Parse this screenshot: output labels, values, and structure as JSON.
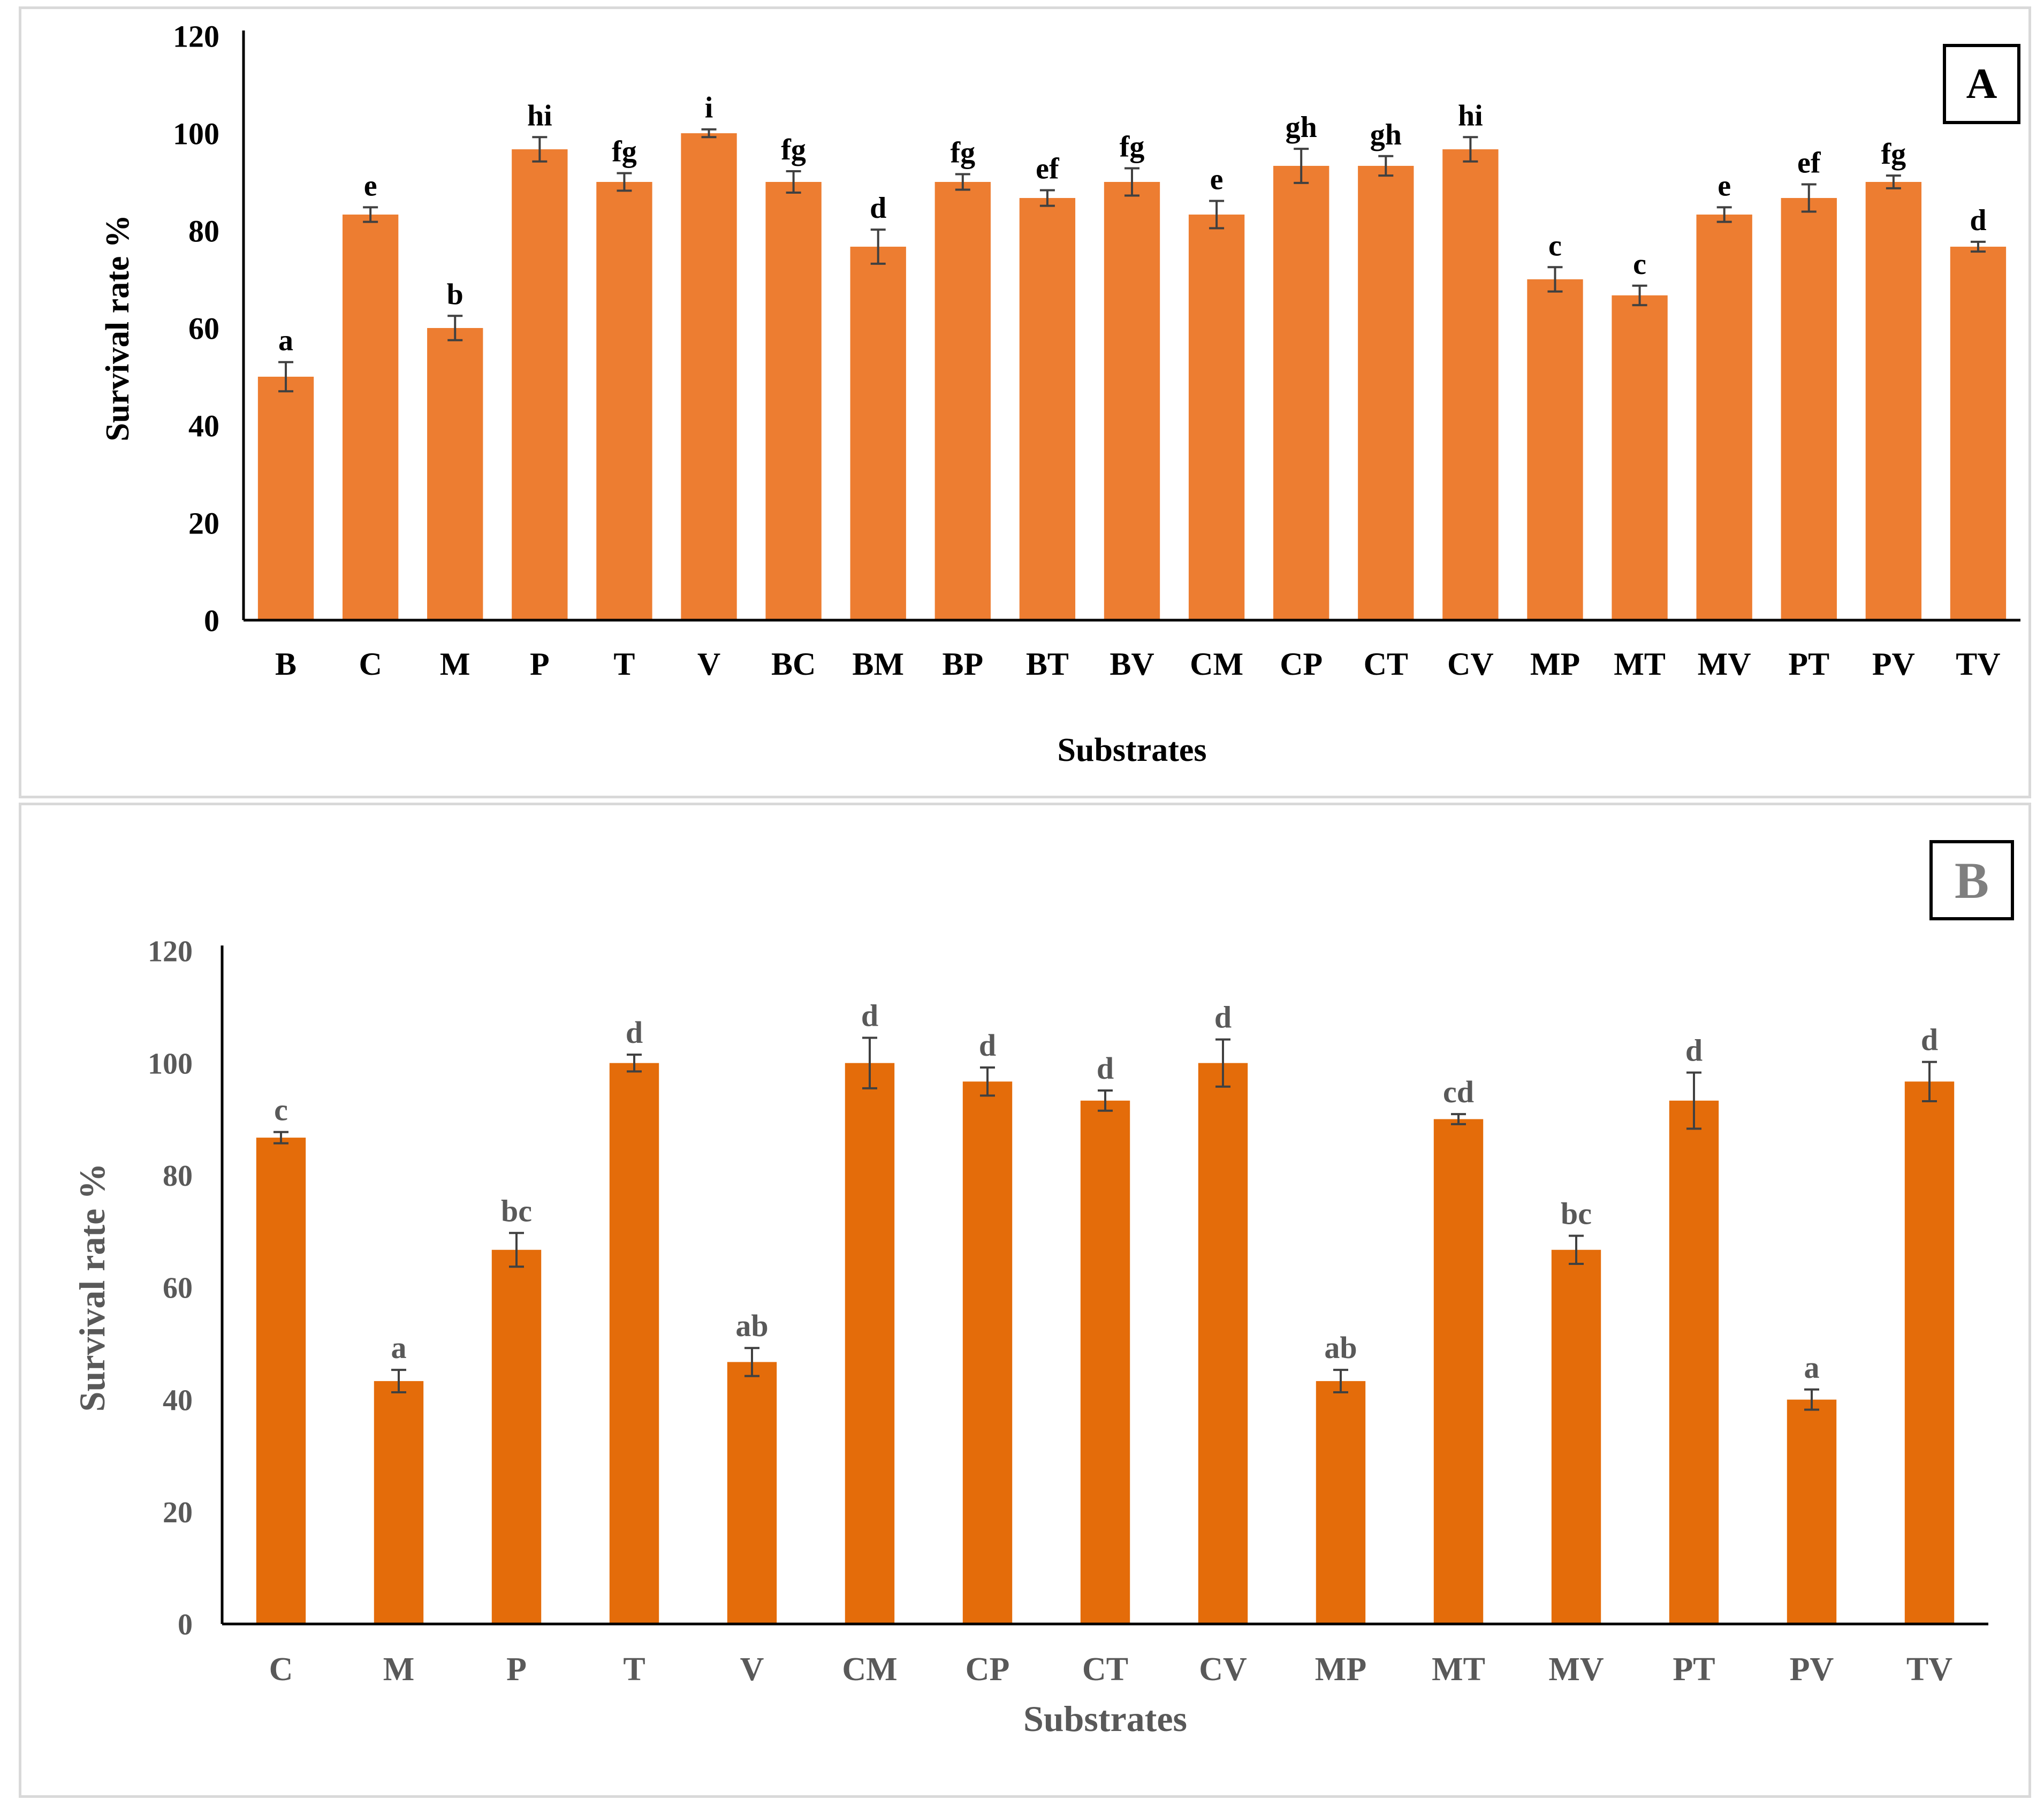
{
  "chart_data": [
    {
      "type": "bar",
      "panel_label": "A",
      "title": "",
      "xlabel": "Substrates",
      "ylabel": "Survival rate %",
      "ylim": [
        0,
        120
      ],
      "yticks": [
        0,
        20,
        40,
        60,
        80,
        100,
        120
      ],
      "bar_color": "#ED7D31",
      "text_color": "#000000",
      "categories": [
        "B",
        "C",
        "M",
        "P",
        "T",
        "V",
        "BC",
        "BM",
        "BP",
        "BT",
        "BV",
        "CM",
        "CP",
        "CT",
        "CV",
        "MP",
        "MT",
        "MV",
        "PT",
        "PV",
        "TV"
      ],
      "values": [
        50,
        83.3,
        60,
        96.7,
        90,
        100,
        90,
        76.7,
        90,
        86.7,
        90,
        83.3,
        93.3,
        93.3,
        96.7,
        70,
        66.7,
        83.3,
        86.7,
        90,
        76.7
      ],
      "errors": [
        3,
        1.5,
        2.5,
        2.5,
        1.8,
        0.8,
        2.2,
        3.5,
        1.6,
        1.6,
        2.8,
        2.8,
        3.5,
        2,
        2.5,
        2.5,
        2,
        1.5,
        2.8,
        1.3,
        1
      ],
      "letters": [
        "a",
        "e",
        "b",
        "hi",
        "fg",
        "i",
        "fg",
        "d",
        "fg",
        "ef",
        "fg",
        "e",
        "gh",
        "gh",
        "hi",
        "c",
        "c",
        "e",
        "ef",
        "fg",
        "d"
      ]
    },
    {
      "type": "bar",
      "panel_label": "B",
      "title": "",
      "xlabel": "Substrates",
      "ylabel": "Survival rate %",
      "ylim": [
        0,
        120
      ],
      "yticks": [
        0,
        20,
        40,
        60,
        80,
        100,
        120
      ],
      "bar_color": "#E46C0A",
      "text_color": "#595959",
      "categories": [
        "C",
        "M",
        "P",
        "T",
        "V",
        "CM",
        "CP",
        "CT",
        "CV",
        "MP",
        "MT",
        "MV",
        "PT",
        "PV",
        "TV"
      ],
      "values": [
        86.7,
        43.3,
        66.7,
        100,
        46.7,
        100,
        96.7,
        93.3,
        100,
        43.3,
        90,
        66.7,
        93.3,
        40,
        96.7
      ],
      "errors": [
        1,
        2,
        3,
        1.5,
        2.5,
        4.5,
        2.5,
        1.8,
        4.2,
        2,
        0.9,
        2.5,
        5,
        1.8,
        3.5
      ],
      "letters": [
        "c",
        "a",
        "bc",
        "d",
        "ab",
        "d",
        "d",
        "d",
        "d",
        "ab",
        "cd",
        "bc",
        "d",
        "a",
        "d"
      ]
    }
  ]
}
